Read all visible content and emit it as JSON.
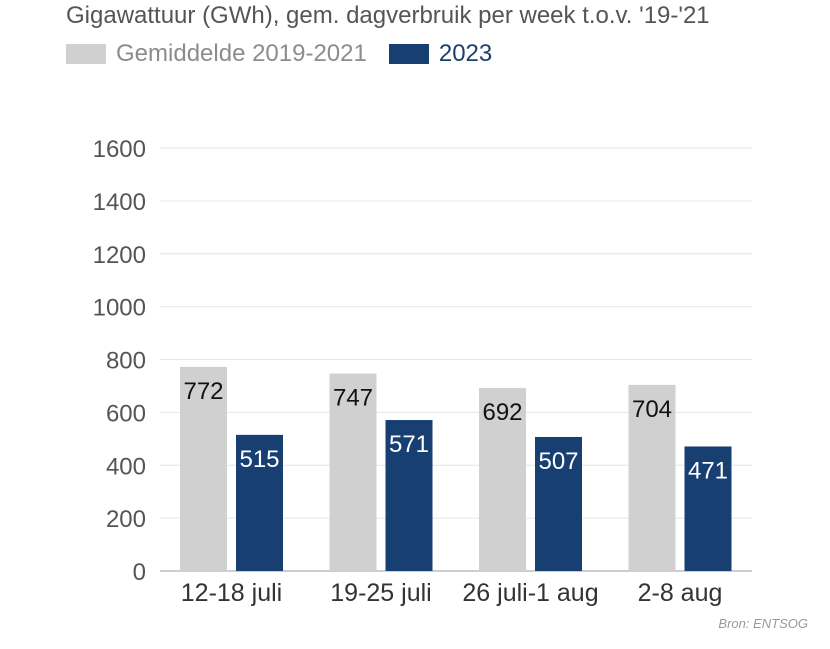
{
  "chart_data": {
    "type": "bar",
    "title": "Gigawattuur (GWh), gem. dagverbruik per week t.o.v. '19-'21",
    "xlabel": "",
    "ylabel": "",
    "categories": [
      "12-18 juli",
      "19-25 juli",
      "26 juli-1 aug",
      "2-8 aug"
    ],
    "series": [
      {
        "name": "Gemiddelde 2019-2021",
        "color": "#d0d0d0",
        "label_color": "#111111",
        "values": [
          772,
          747,
          692,
          704
        ]
      },
      {
        "name": "2023",
        "color": "#173f72",
        "label_color": "#ffffff",
        "values": [
          515,
          571,
          507,
          471
        ]
      }
    ],
    "ylim": [
      0,
      1600
    ],
    "yticks": [
      0,
      200,
      400,
      600,
      800,
      1000,
      1200,
      1400,
      1600
    ],
    "grid": true,
    "legend": "top-left",
    "source": "Bron: ENTSOG"
  }
}
